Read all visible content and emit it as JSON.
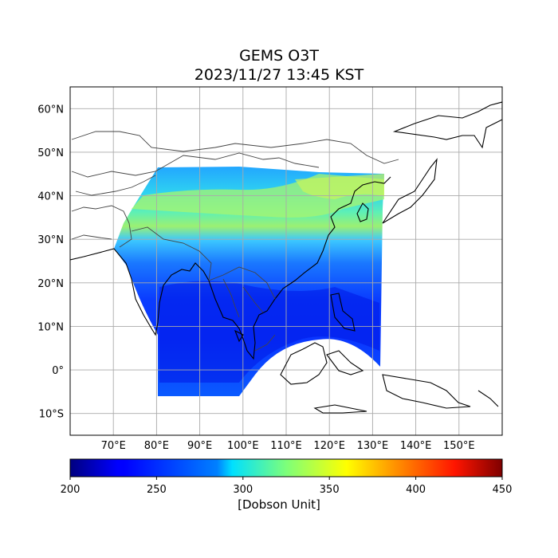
{
  "title": {
    "line1": "GEMS O3T",
    "line2": "2023/11/27 13:45 KST"
  },
  "map": {
    "lon_range": [
      60,
      160
    ],
    "lat_range": [
      -15,
      65
    ],
    "lon_ticks": [
      {
        "value": 70,
        "label": "70°E"
      },
      {
        "value": 80,
        "label": "80°E"
      },
      {
        "value": 90,
        "label": "90°E"
      },
      {
        "value": 100,
        "label": "100°E"
      },
      {
        "value": 110,
        "label": "110°E"
      },
      {
        "value": 120,
        "label": "120°E"
      },
      {
        "value": 130,
        "label": "130°E"
      },
      {
        "value": 140,
        "label": "140°E"
      },
      {
        "value": 150,
        "label": "150°E"
      }
    ],
    "lat_ticks": [
      {
        "value": 60,
        "label": "60°N"
      },
      {
        "value": 50,
        "label": "50°N"
      },
      {
        "value": 40,
        "label": "40°N"
      },
      {
        "value": 30,
        "label": "30°N"
      },
      {
        "value": 20,
        "label": "20°N"
      },
      {
        "value": 10,
        "label": "10°N"
      },
      {
        "value": 0,
        "label": "0°"
      },
      {
        "value": -10,
        "label": "10°S"
      }
    ],
    "gridlines": true,
    "colormap": "jet"
  },
  "colorbar": {
    "min": 200,
    "max": 450,
    "ticks": [
      {
        "value": 200,
        "label": "200"
      },
      {
        "value": 250,
        "label": "250"
      },
      {
        "value": 300,
        "label": "300"
      },
      {
        "value": 350,
        "label": "350"
      },
      {
        "value": 400,
        "label": "400"
      },
      {
        "value": 450,
        "label": "450"
      }
    ],
    "label": "[Dobson Unit]"
  }
}
